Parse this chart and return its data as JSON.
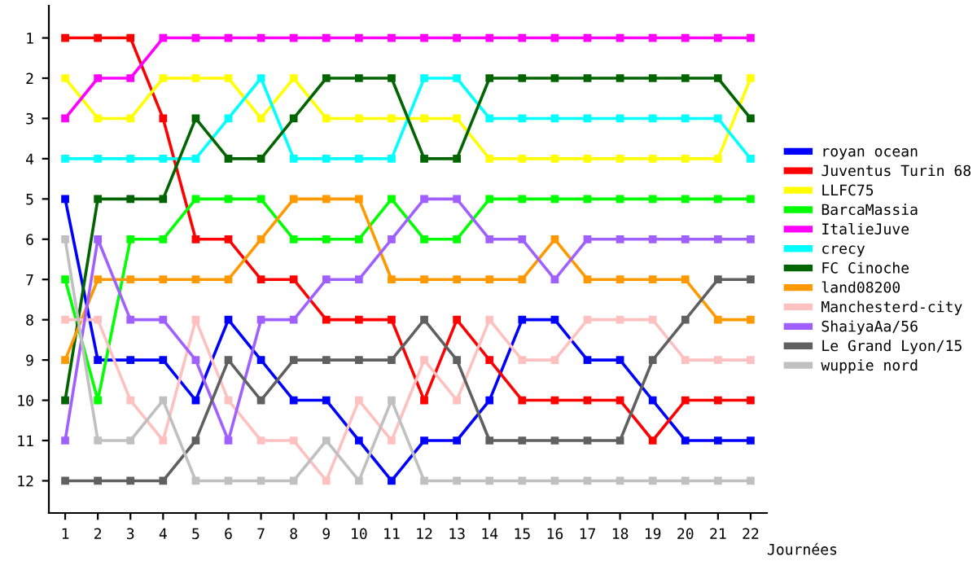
{
  "chart_data": {
    "type": "line",
    "xlabel": "Journées",
    "x": [
      1,
      2,
      3,
      4,
      5,
      6,
      7,
      8,
      9,
      10,
      11,
      12,
      13,
      14,
      15,
      16,
      17,
      18,
      19,
      20,
      21,
      22
    ],
    "xlim": [
      0.5,
      22.5
    ],
    "xticks": [
      1,
      2,
      3,
      4,
      5,
      6,
      7,
      8,
      9,
      10,
      11,
      12,
      13,
      14,
      15,
      16,
      17,
      18,
      19,
      20,
      21,
      22
    ],
    "ylim": [
      12.8,
      0.2
    ],
    "yticks": [
      1,
      2,
      3,
      4,
      5,
      6,
      7,
      8,
      9,
      10,
      11,
      12
    ],
    "grid": false,
    "legend": "right",
    "marker": "square",
    "line_style": "solid",
    "series": [
      {
        "name": "royan ocean",
        "color": "#0000ff",
        "values": [
          5,
          9,
          9,
          9,
          10,
          8,
          9,
          10,
          10,
          11,
          12,
          11,
          11,
          10,
          8,
          8,
          9,
          9,
          10,
          11,
          11,
          11
        ]
      },
      {
        "name": "Juventus Turin 68",
        "color": "#ff0000",
        "values": [
          1,
          1,
          1,
          3,
          6,
          6,
          7,
          7,
          8,
          8,
          8,
          10,
          8,
          9,
          10,
          10,
          10,
          10,
          11,
          10,
          10,
          10
        ]
      },
      {
        "name": "LLFC75",
        "color": "#ffff00",
        "values": [
          2,
          3,
          3,
          2,
          2,
          2,
          3,
          2,
          3,
          3,
          3,
          3,
          3,
          4,
          4,
          4,
          4,
          4,
          4,
          4,
          4,
          2
        ]
      },
      {
        "name": "BarcaMassia",
        "color": "#00ff00",
        "values": [
          7,
          10,
          6,
          6,
          5,
          5,
          5,
          6,
          6,
          6,
          5,
          6,
          6,
          5,
          5,
          5,
          5,
          5,
          5,
          5,
          5,
          5
        ]
      },
      {
        "name": "ItalieJuve",
        "color": "#ff00ff",
        "values": [
          3,
          2,
          2,
          1,
          1,
          1,
          1,
          1,
          1,
          1,
          1,
          1,
          1,
          1,
          1,
          1,
          1,
          1,
          1,
          1,
          1,
          1
        ]
      },
      {
        "name": "crecy",
        "color": "#00ffff",
        "values": [
          4,
          4,
          4,
          4,
          4,
          3,
          2,
          4,
          4,
          4,
          4,
          2,
          2,
          3,
          3,
          3,
          3,
          3,
          3,
          3,
          3,
          4
        ]
      },
      {
        "name": "FC Cinoche",
        "color": "#006400",
        "values": [
          10,
          5,
          5,
          5,
          3,
          4,
          4,
          3,
          2,
          2,
          2,
          4,
          4,
          2,
          2,
          2,
          2,
          2,
          2,
          2,
          2,
          3
        ]
      },
      {
        "name": "land08200",
        "color": "#ff9900",
        "values": [
          9,
          7,
          7,
          7,
          7,
          7,
          6,
          5,
          5,
          5,
          7,
          7,
          7,
          7,
          7,
          6,
          7,
          7,
          7,
          7,
          8,
          8
        ]
      },
      {
        "name": "Manchesterd-city",
        "color": "#ffc0c0",
        "values": [
          8,
          8,
          10,
          11,
          8,
          10,
          11,
          11,
          12,
          10,
          11,
          9,
          10,
          8,
          9,
          9,
          8,
          8,
          8,
          9,
          9,
          9
        ]
      },
      {
        "name": "ShaiyaAa/56",
        "color": "#a060ff",
        "values": [
          11,
          6,
          8,
          8,
          9,
          11,
          8,
          8,
          7,
          7,
          6,
          5,
          5,
          6,
          6,
          7,
          6,
          6,
          6,
          6,
          6,
          6
        ]
      },
      {
        "name": "Le Grand Lyon/15",
        "color": "#606060",
        "values": [
          12,
          12,
          12,
          12,
          11,
          9,
          10,
          9,
          9,
          9,
          9,
          8,
          9,
          11,
          11,
          11,
          11,
          11,
          9,
          8,
          7,
          7
        ]
      },
      {
        "name": "wuppie nord",
        "color": "#c0c0c0",
        "values": [
          6,
          11,
          11,
          10,
          12,
          12,
          12,
          12,
          11,
          12,
          10,
          12,
          12,
          12,
          12,
          12,
          12,
          12,
          12,
          12,
          12,
          12
        ]
      }
    ]
  }
}
